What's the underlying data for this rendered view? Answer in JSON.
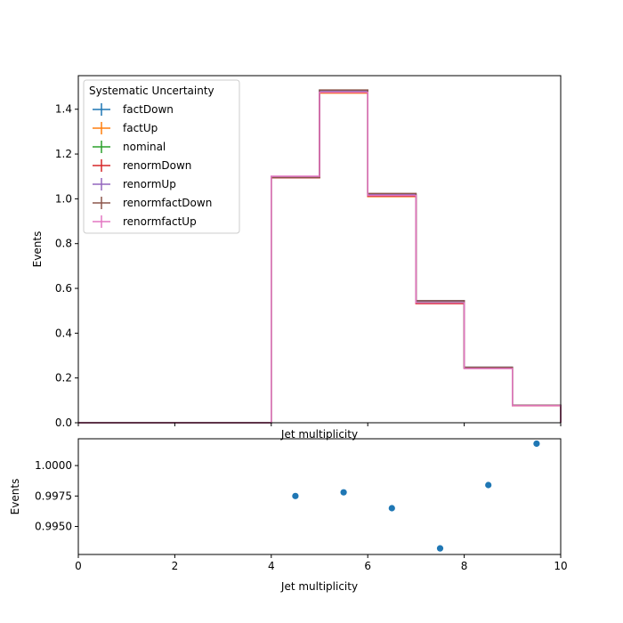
{
  "chart_data": [
    {
      "type": "line",
      "subtype": "step-histogram",
      "xlabel": "Jet multiplicity",
      "ylabel": "Events",
      "xlim": [
        0,
        10
      ],
      "ylim": [
        0,
        1.55
      ],
      "yticks": [
        0.0,
        0.2,
        0.4,
        0.6,
        0.8,
        1.0,
        1.2,
        1.4
      ],
      "ytick_labels": [
        "0.0",
        "0.2",
        "0.4",
        "0.6",
        "0.8",
        "1.0",
        "1.2",
        "1.4"
      ],
      "xticks": [
        0,
        2,
        4,
        6,
        8,
        10
      ],
      "grid": false,
      "legend": {
        "title": "Systematic Uncertainty",
        "placement": "top-left"
      },
      "bin_edges": [
        0,
        1,
        2,
        3,
        4,
        5,
        6,
        7,
        8,
        9,
        10
      ],
      "series": [
        {
          "name": "factDown",
          "color": "#1f77b4",
          "values": [
            0,
            0,
            0,
            0,
            1.1,
            1.485,
            1.022,
            0.545,
            0.248,
            0.078
          ]
        },
        {
          "name": "factUp",
          "color": "#ff7f0e",
          "values": [
            0,
            0,
            0,
            0,
            1.095,
            1.472,
            1.01,
            0.535,
            0.243,
            0.076
          ]
        },
        {
          "name": "nominal",
          "color": "#2ca02c",
          "values": [
            0,
            0,
            0,
            0,
            1.097,
            1.478,
            1.016,
            0.54,
            0.245,
            0.077
          ]
        },
        {
          "name": "renormDown",
          "color": "#d62728",
          "values": [
            0,
            0,
            0,
            0,
            1.094,
            1.475,
            1.012,
            0.532,
            0.244,
            0.077
          ]
        },
        {
          "name": "renormUp",
          "color": "#9467bd",
          "values": [
            0,
            0,
            0,
            0,
            1.099,
            1.482,
            1.02,
            0.543,
            0.246,
            0.078
          ]
        },
        {
          "name": "renormfactDown",
          "color": "#8c564b",
          "values": [
            0,
            0,
            0,
            0,
            1.095,
            1.486,
            1.024,
            0.545,
            0.248,
            0.078
          ]
        },
        {
          "name": "renormfactUp",
          "color": "#e377c2",
          "values": [
            0,
            0,
            0,
            0,
            1.101,
            1.476,
            1.015,
            0.536,
            0.242,
            0.076
          ]
        }
      ]
    },
    {
      "type": "scatter",
      "xlabel": "Jet multiplicity",
      "ylabel": "Events",
      "xlim": [
        0,
        10
      ],
      "ylim": [
        0.9927,
        1.0022
      ],
      "xticks": [
        0,
        2,
        4,
        6,
        8,
        10
      ],
      "xtick_labels": [
        "0",
        "2",
        "4",
        "6",
        "8",
        "10"
      ],
      "yticks": [
        0.995,
        0.9975,
        1.0
      ],
      "ytick_labels": [
        "0.9950",
        "0.9975",
        "1.0000"
      ],
      "grid": false,
      "series": [
        {
          "color": "#1f77b4",
          "x": [
            4.5,
            5.5,
            6.5,
            7.5,
            8.5,
            9.5
          ],
          "y": [
            0.9975,
            0.9978,
            0.9965,
            0.9932,
            0.9984,
            1.0018
          ]
        }
      ]
    }
  ]
}
